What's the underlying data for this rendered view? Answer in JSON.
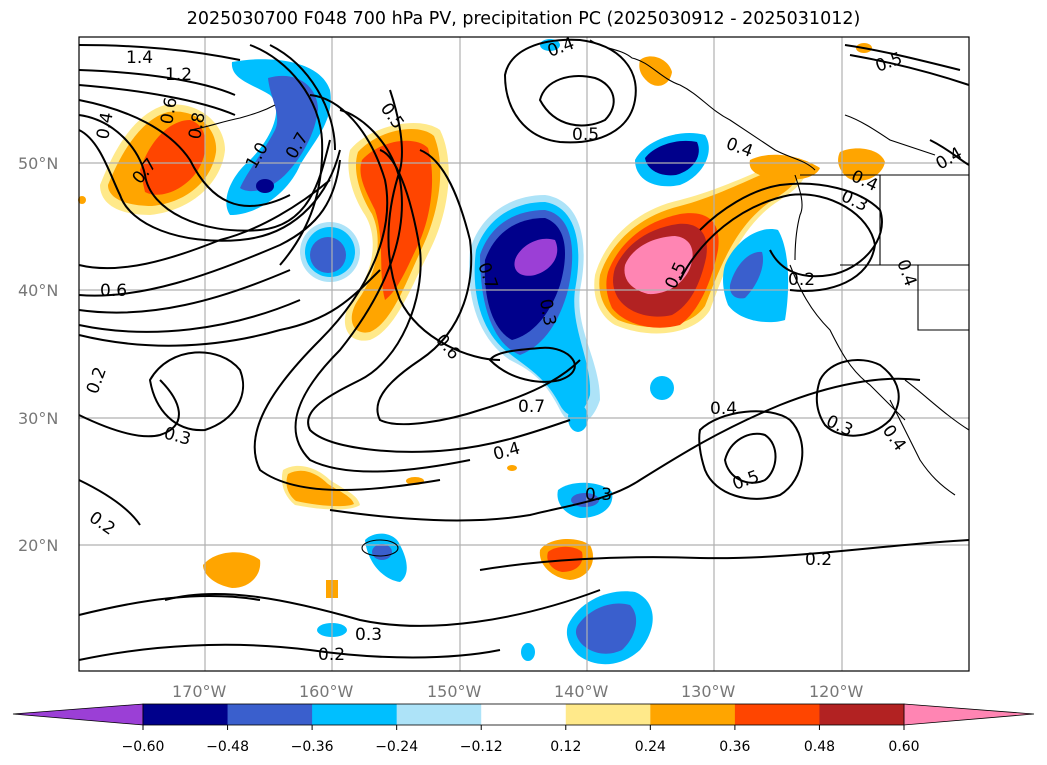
{
  "title": "2025030700 F048 700 hPa PV, precipitation PC (2025030912 - 2025031012)",
  "map": {
    "lat_labels": [
      "50°N",
      "40°N",
      "30°N",
      "20°N"
    ],
    "lon_labels": [
      "170°W",
      "160°W",
      "150°W",
      "140°W",
      "130°W",
      "120°W"
    ],
    "lat_values": [
      50,
      40,
      30,
      20
    ],
    "lon_values": [
      -170,
      -160,
      -150,
      -140,
      -130,
      -120
    ],
    "grid": true
  },
  "contour_labels": [
    "1.4",
    "1.2",
    "0.4",
    "0.6",
    "0.8",
    "0.7",
    "1.0",
    "0.7",
    "0.5",
    "0.4",
    "0.5",
    "0.4",
    "0.6",
    "0.7",
    "0.3",
    "0.6",
    "0.2",
    "0.3",
    "0.2",
    "0.7",
    "0.4",
    "0.3",
    "0.2",
    "0.3",
    "0.2",
    "0.5",
    "0.4",
    "0.5",
    "0.3",
    "0.4",
    "0.2",
    "0.4",
    "0.3",
    "0.4",
    "0.5",
    "0.4"
  ],
  "colorbar": {
    "levels": [
      "−0.60",
      "−0.48",
      "−0.36",
      "−0.24",
      "−0.12",
      "0.12",
      "0.24",
      "0.36",
      "0.48",
      "0.60"
    ],
    "colors": [
      "#9b3fd6",
      "#00008b",
      "#3a5fcd",
      "#00bfff",
      "#ade3f8",
      "#ffffff",
      "#ffe98a",
      "#ffa500",
      "#ff4500",
      "#b22222",
      "#ff85b3"
    ],
    "extend": "both"
  },
  "colors": {
    "land_outline": "#000000",
    "contour": "#000000",
    "grid": "#b0b0b0"
  }
}
